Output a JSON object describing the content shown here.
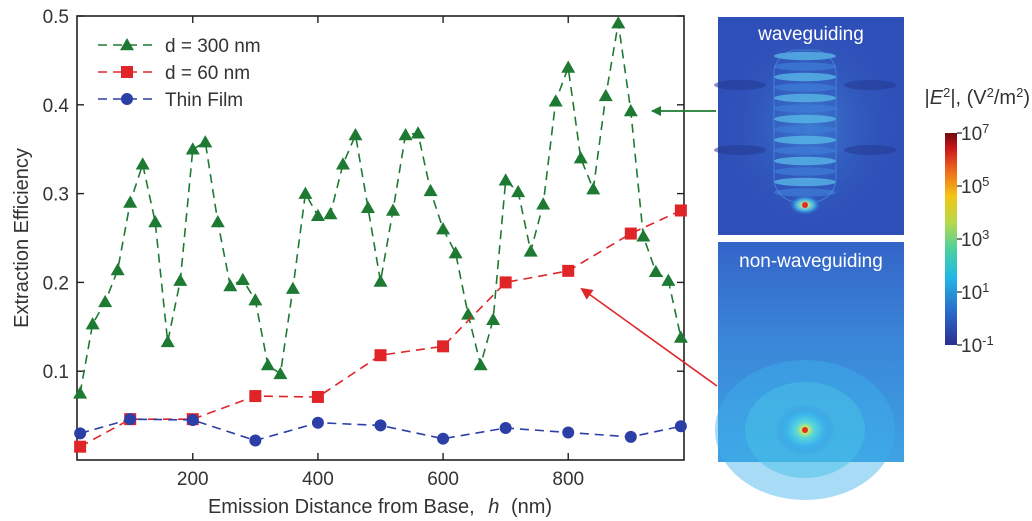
{
  "chart_data": {
    "type": "line",
    "xlabel_main": "Emission Distance from Base,",
    "xlabel_var": "h",
    "xlabel_unit": "(nm)",
    "ylabel": "Extraction Efficiency",
    "xlim": [
      15,
      985
    ],
    "ylim": [
      0.0,
      0.5
    ],
    "xticks": [
      200,
      400,
      600,
      800
    ],
    "yticks": [
      0.1,
      0.2,
      0.3,
      0.4,
      0.5
    ],
    "ytick_labels": [
      "0.1",
      "0.2",
      "0.3",
      "0.4",
      "0.5"
    ],
    "xtick_labels": [
      "200",
      "400",
      "600",
      "800"
    ],
    "legend_position": "top-left",
    "series": [
      {
        "name": "d = 300 nm",
        "marker": "triangle",
        "color": "#1e7a33",
        "x": [
          20,
          40,
          60,
          80,
          100,
          120,
          140,
          160,
          180,
          200,
          220,
          240,
          260,
          280,
          300,
          320,
          340,
          360,
          380,
          400,
          420,
          440,
          460,
          480,
          500,
          520,
          540,
          560,
          580,
          600,
          620,
          640,
          660,
          680,
          700,
          720,
          740,
          760,
          780,
          800,
          820,
          840,
          860,
          880,
          900,
          920,
          940,
          960,
          980
        ],
        "y": [
          0.075,
          0.153,
          0.178,
          0.214,
          0.29,
          0.333,
          0.268,
          0.133,
          0.202,
          0.35,
          0.358,
          0.268,
          0.196,
          0.203,
          0.18,
          0.107,
          0.097,
          0.193,
          0.3,
          0.275,
          0.277,
          0.333,
          0.366,
          0.284,
          0.201,
          0.281,
          0.366,
          0.368,
          0.303,
          0.26,
          0.233,
          0.164,
          0.107,
          0.158,
          0.315,
          0.302,
          0.235,
          0.288,
          0.404,
          0.442,
          0.34,
          0.305,
          0.41,
          0.492,
          0.393,
          0.252,
          0.212,
          0.202,
          0.138
        ]
      },
      {
        "name": "d = 60 nm",
        "marker": "square",
        "color": "#e02529",
        "x": [
          20,
          100,
          200,
          300,
          400,
          500,
          600,
          700,
          800,
          900,
          980
        ],
        "y": [
          0.015,
          0.046,
          0.046,
          0.072,
          0.071,
          0.118,
          0.128,
          0.2,
          0.213,
          0.255,
          0.281
        ]
      },
      {
        "name": "Thin Film",
        "marker": "circle",
        "color": "#2b3fa6",
        "x": [
          20,
          100,
          200,
          300,
          400,
          500,
          600,
          700,
          800,
          900,
          980
        ],
        "y": [
          0.03,
          0.046,
          0.045,
          0.022,
          0.042,
          0.039,
          0.024,
          0.036,
          0.031,
          0.026,
          0.038
        ]
      }
    ]
  },
  "panels": {
    "top_label": "waveguiding",
    "bottom_label": "non-waveguiding"
  },
  "colorbar": {
    "title_prefix": "|",
    "title_var": "E",
    "title_sup": "2",
    "title_mid": "|, (V",
    "title_sup2": "2",
    "title_end": "/m",
    "title_sup3": "2",
    "title_close": ")",
    "ticks": [
      {
        "base": "10",
        "exp": "7",
        "frac": 1.0
      },
      {
        "base": "10",
        "exp": "5",
        "frac": 0.75
      },
      {
        "base": "10",
        "exp": "3",
        "frac": 0.5
      },
      {
        "base": "10",
        "exp": "1",
        "frac": 0.25
      },
      {
        "base": "10",
        "exp": "-1",
        "frac": 0.0
      }
    ],
    "colors": [
      "#2a2f8f",
      "#2a66c8",
      "#22b8e6",
      "#4ad0a0",
      "#b8d94a",
      "#f2c614",
      "#ee6b1e",
      "#c8141c",
      "#6e0b10"
    ]
  }
}
